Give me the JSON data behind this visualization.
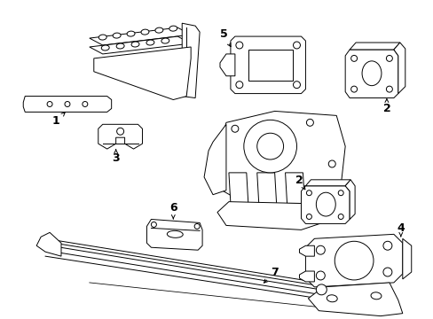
{
  "background_color": "#ffffff",
  "line_color": "#000000",
  "text_color": "#000000",
  "figure_width": 4.89,
  "figure_height": 3.6,
  "dpi": 100,
  "lw": 0.7
}
